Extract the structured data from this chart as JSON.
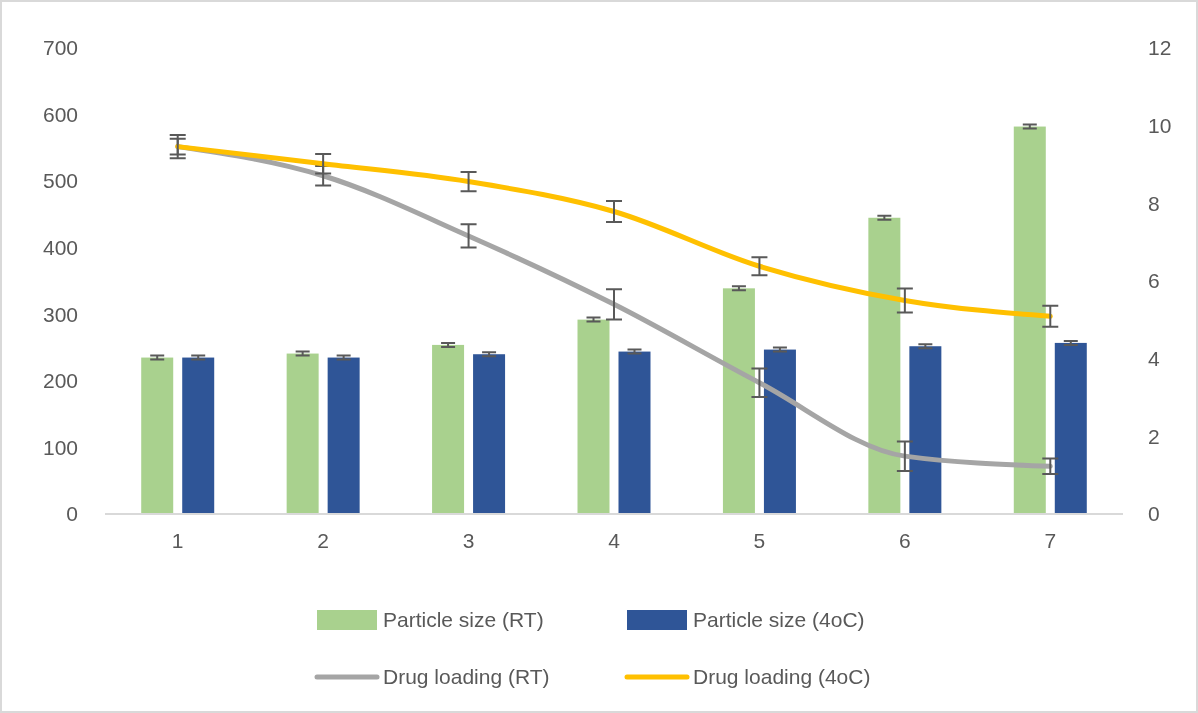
{
  "chart_data": {
    "type": "bar",
    "categories": [
      "1",
      "2",
      "3",
      "4",
      "5",
      "6",
      "7"
    ],
    "ylim": [
      0,
      700
    ],
    "yticks": [
      0,
      100,
      200,
      300,
      400,
      500,
      600,
      700
    ],
    "y2lim": [
      0,
      12
    ],
    "y2ticks": [
      0,
      2,
      4,
      6,
      8,
      10,
      12
    ],
    "grid": false,
    "legend": "bottom",
    "series": [
      {
        "name": "Particle size (RT)",
        "color": "#a9d18e",
        "values": [
          235,
          241,
          254,
          292,
          339,
          445,
          582
        ],
        "errors": [
          3,
          3,
          3,
          3,
          3,
          3,
          3
        ]
      },
      {
        "name": "Particle size (4oC)",
        "color": "#2f5597",
        "values": [
          235,
          235,
          240,
          244,
          247,
          252,
          257
        ],
        "errors": [
          3,
          3,
          3,
          3,
          3,
          3,
          3
        ]
      },
      {
        "name": "Drug loading (RT)",
        "type": "line",
        "axis": "y2",
        "color": "#a5a5a5",
        "values": [
          9.46,
          8.71,
          7.16,
          5.4,
          3.38,
          1.49,
          1.23
        ],
        "errors": [
          0.3,
          0.25,
          0.3,
          0.39,
          0.37,
          0.38,
          0.2
        ]
      },
      {
        "name": "Drug loading (4oC)",
        "type": "line",
        "axis": "y2",
        "color": "#ffc000",
        "values": [
          9.46,
          9.02,
          8.56,
          7.79,
          6.38,
          5.5,
          5.09
        ],
        "errors": [
          0.2,
          0.25,
          0.25,
          0.27,
          0.23,
          0.31,
          0.27
        ]
      }
    ]
  }
}
